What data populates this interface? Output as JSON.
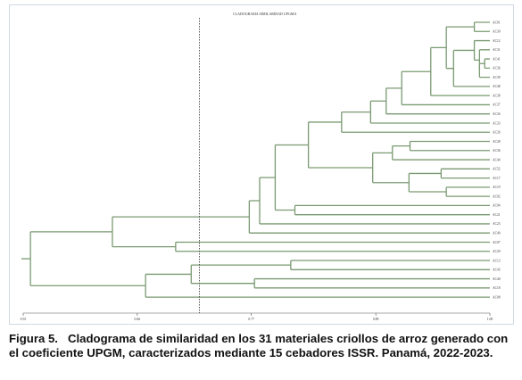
{
  "chart_data": {
    "type": "dendrogram",
    "title": "CLADOGRAMA SIMILARIDAD UPGMA",
    "xlim": [
      0.55,
      1.0
    ],
    "cut_line": 0.72,
    "ticks": [
      {
        "value": 0.55,
        "label": "0.55"
      },
      {
        "value": 0.66,
        "label": "0.66"
      },
      {
        "value": 0.77,
        "label": "0.77"
      },
      {
        "value": 0.89,
        "label": "0.89"
      },
      {
        "value": 1.0,
        "label": "1.00"
      }
    ],
    "leaves": [
      "AC01",
      "AC30",
      "AC12",
      "AC31",
      "AC41",
      "AC36",
      "AC39",
      "AC48",
      "AC38",
      "AC37",
      "AC34",
      "AC33",
      "AC26",
      "AC28",
      "AC36",
      "AC44",
      "AC52",
      "AC17",
      "AC19",
      "AC02",
      "AC04",
      "AC21",
      "AC23",
      "AC49",
      "AC07",
      "AC29",
      "AC13",
      "AC43",
      "AC40",
      "AC18",
      "AC08"
    ],
    "merges": [
      {
        "id": "n1",
        "children": [
          "L0",
          "L1"
        ],
        "similarity": 0.985
      },
      {
        "id": "n2",
        "children": [
          "L4",
          "L5"
        ],
        "similarity": 0.995
      },
      {
        "id": "n3",
        "children": [
          "n2",
          "L6"
        ],
        "similarity": 0.99
      },
      {
        "id": "n4",
        "children": [
          "L3",
          "n3"
        ],
        "similarity": 0.99
      },
      {
        "id": "n5",
        "children": [
          "L2",
          "n4"
        ],
        "similarity": 0.985
      },
      {
        "id": "n6",
        "children": [
          "n5",
          "L7"
        ],
        "similarity": 0.965
      },
      {
        "id": "n7",
        "children": [
          "n1",
          "n6"
        ],
        "similarity": 0.958
      },
      {
        "id": "n8",
        "children": [
          "n7",
          "L8"
        ],
        "similarity": 0.943
      },
      {
        "id": "n9",
        "children": [
          "n8",
          "L9"
        ],
        "similarity": 0.915
      },
      {
        "id": "n10",
        "children": [
          "n9",
          "L10"
        ],
        "similarity": 0.9
      },
      {
        "id": "n11",
        "children": [
          "n10",
          "L11"
        ],
        "similarity": 0.885
      },
      {
        "id": "n12",
        "children": [
          "L13",
          "L14"
        ],
        "similarity": 0.923
      },
      {
        "id": "n13",
        "children": [
          "n12",
          "L15"
        ],
        "similarity": 0.906
      },
      {
        "id": "n14",
        "children": [
          "L16",
          "L17"
        ],
        "similarity": 0.953
      },
      {
        "id": "n15",
        "children": [
          "L18",
          "L19"
        ],
        "similarity": 0.958
      },
      {
        "id": "n16",
        "children": [
          "n14",
          "n15"
        ],
        "similarity": 0.922
      },
      {
        "id": "n17",
        "children": [
          "n13",
          "n16"
        ],
        "similarity": 0.887
      },
      {
        "id": "n18",
        "children": [
          "n11",
          "L12"
        ],
        "similarity": 0.857
      },
      {
        "id": "n19",
        "children": [
          "n18",
          "n17"
        ],
        "similarity": 0.825
      },
      {
        "id": "n20",
        "children": [
          "L20",
          "L21"
        ],
        "similarity": 0.812
      },
      {
        "id": "n21",
        "children": [
          "n19",
          "n20"
        ],
        "similarity": 0.793
      },
      {
        "id": "n22",
        "children": [
          "n21",
          "L22"
        ],
        "similarity": 0.778
      },
      {
        "id": "n23",
        "children": [
          "n22",
          "L23"
        ],
        "similarity": 0.768
      },
      {
        "id": "n24",
        "children": [
          "L24",
          "L25"
        ],
        "similarity": 0.697
      },
      {
        "id": "n25",
        "children": [
          "n23",
          "n24"
        ],
        "similarity": 0.636
      },
      {
        "id": "n26",
        "children": [
          "L26",
          "L27"
        ],
        "similarity": 0.808
      },
      {
        "id": "n27",
        "children": [
          "L28",
          "L29"
        ],
        "similarity": 0.773
      },
      {
        "id": "n28",
        "children": [
          "n26",
          "n27"
        ],
        "similarity": 0.712
      },
      {
        "id": "n29",
        "children": [
          "n28",
          "L30"
        ],
        "similarity": 0.668
      },
      {
        "id": "n30",
        "children": [
          "n25",
          "n29"
        ],
        "similarity": 0.557
      }
    ]
  },
  "caption": {
    "label": "Figura 5.",
    "text": "Cladograma de similaridad en los 31 materiales criollos de arroz generado con el coeficiente UPGM, caracterizados mediante 15 cebadores ISSR. Panamá, 2022-2023."
  },
  "colors": {
    "branch": "#7a9a72",
    "cut_line": "#333333",
    "frame": "#cfd8e3"
  }
}
